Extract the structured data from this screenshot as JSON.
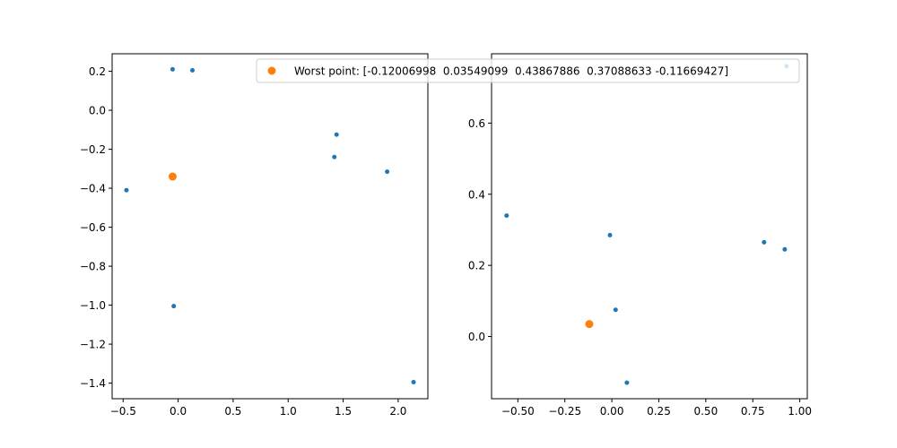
{
  "chart_data": [
    {
      "type": "scatter",
      "panel": "left",
      "xlim": [
        -0.6,
        2.27
      ],
      "ylim": [
        -1.48,
        0.29
      ],
      "xticks": [
        -0.5,
        0.0,
        0.5,
        1.0,
        1.5,
        2.0
      ],
      "xtick_labels": [
        "−0.5",
        "0.0",
        "0.5",
        "1.0",
        "1.5",
        "2.0"
      ],
      "yticks": [
        -1.4,
        -1.2,
        -1.0,
        -0.8,
        -0.6,
        -0.4,
        -0.2,
        0.0,
        0.2
      ],
      "ytick_labels": [
        "−1.4",
        "−1.2",
        "−1.0",
        "−0.8",
        "−0.6",
        "−0.4",
        "−0.2",
        "0.0",
        "0.2"
      ],
      "series": [
        {
          "color": "#1f77b4",
          "points": [
            [
              -0.05,
              0.21
            ],
            [
              0.13,
              0.205
            ],
            [
              1.44,
              -0.125
            ],
            [
              1.42,
              -0.24
            ],
            [
              1.9,
              -0.315
            ],
            [
              -0.47,
              -0.41
            ],
            [
              -0.04,
              -1.005
            ],
            [
              2.14,
              -1.395
            ]
          ]
        },
        {
          "color": "#ff7f0e",
          "points": [
            [
              -0.05,
              -0.34
            ]
          ]
        }
      ]
    },
    {
      "type": "scatter",
      "panel": "right",
      "xlim": [
        -0.64,
        1.04
      ],
      "ylim": [
        -0.175,
        0.795
      ],
      "xticks": [
        -0.5,
        -0.25,
        0.0,
        0.25,
        0.5,
        0.75,
        1.0
      ],
      "xtick_labels": [
        "−0.50",
        "−0.25",
        "0.00",
        "0.25",
        "0.50",
        "0.75",
        "1.00"
      ],
      "yticks": [
        0.0,
        0.2,
        0.4,
        0.6
      ],
      "ytick_labels": [
        "0.0",
        "0.2",
        "0.4",
        "0.6"
      ],
      "series": [
        {
          "color": "#1f77b4",
          "points": [
            [
              0.93,
              0.76
            ],
            [
              -0.56,
              0.34
            ],
            [
              -0.01,
              0.285
            ],
            [
              0.81,
              0.265
            ],
            [
              0.92,
              0.245
            ],
            [
              0.02,
              0.075
            ],
            [
              0.08,
              -0.13
            ]
          ]
        },
        {
          "name": "Worst point: [-0.12006998  0.03549099  0.43867886  0.37088633 -0.11669427]",
          "color": "#ff7f0e",
          "points": [
            [
              -0.12,
              0.035
            ]
          ]
        }
      ]
    }
  ],
  "legend": {
    "placement": "upper-right",
    "label": "Worst point: [-0.12006998  0.03549099  0.43867886  0.37088633 -0.11669427]",
    "color": "#ff7f0e"
  }
}
